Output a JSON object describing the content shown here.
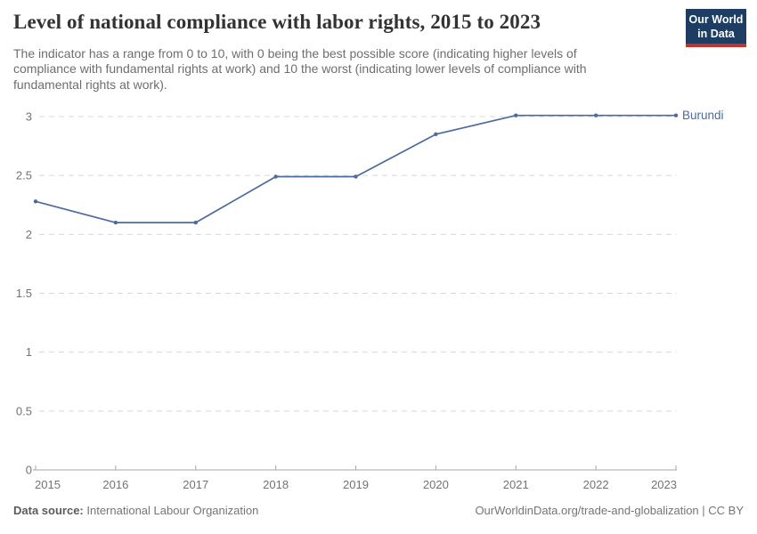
{
  "header": {
    "title": "Level of national compliance with labor rights, 2015 to 2023",
    "subtitle": "The indicator has a range from 0 to 10, with 0 being the best possible score (indicating higher levels of compliance with fundamental rights at work) and 10 the worst (indicating lower levels of compliance with fundamental rights at work).",
    "logo": {
      "line1": "Our World",
      "line2": "in Data",
      "bg_color": "#1d3d63",
      "accent_color": "#c2322e"
    }
  },
  "chart_data": {
    "type": "line",
    "title": "Level of national compliance with labor rights, 2015 to 2023",
    "x": [
      2015,
      2016,
      2017,
      2018,
      2019,
      2020,
      2021,
      2022,
      2023
    ],
    "series": [
      {
        "name": "Burundi",
        "values": [
          2.28,
          2.1,
          2.1,
          2.49,
          2.49,
          2.85,
          3.01,
          3.01,
          3.01
        ],
        "color": "#4c6a9c"
      }
    ],
    "xlabel": "",
    "ylabel": "",
    "ylim": [
      0,
      3
    ],
    "yticks": [
      0,
      0.5,
      1,
      1.5,
      2,
      2.5,
      3
    ],
    "grid": true,
    "grid_style": "dashed",
    "grid_color": "#d8d8d8",
    "axis_color": "#a6a6a6",
    "tick_label_color": "#737373",
    "legend_position": "end-of-line-label"
  },
  "footer": {
    "datasource_label": "Data source:",
    "datasource_value": "International Labour Organization",
    "credit": "OurWorldinData.org/trade-and-globalization | CC BY"
  }
}
